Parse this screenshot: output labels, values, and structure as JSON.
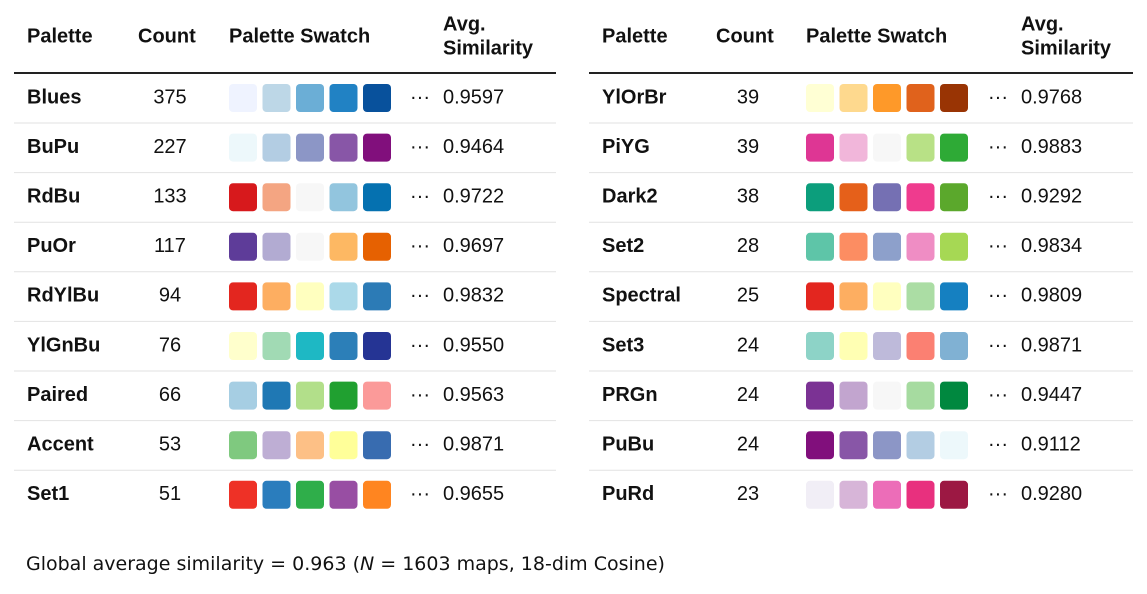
{
  "ellipsis": "···",
  "tables": [
    {
      "header": [
        "Palette",
        "Count",
        "Palette Swatch",
        [
          "Avg.",
          "Similarity"
        ]
      ],
      "rows": [
        {
          "name": "Blues",
          "count": "375",
          "swatch": [
            "#eff3ff",
            "#bdd7e7",
            "#6baed6",
            "#2182c4",
            "#08519c"
          ],
          "similarity": "0.9597"
        },
        {
          "name": "BuPu",
          "count": "227",
          "swatch": [
            "#edf8fb",
            "#b3cde3",
            "#8c96c6",
            "#8856a7",
            "#810f7c"
          ],
          "similarity": "0.9464"
        },
        {
          "name": "RdBu",
          "count": "133",
          "swatch": [
            "#d7191c",
            "#f4a582",
            "#f7f7f7",
            "#92c5de",
            "#0571b0"
          ],
          "similarity": "0.9722"
        },
        {
          "name": "PuOr",
          "count": "117",
          "swatch": [
            "#5e3c99",
            "#b2abd2",
            "#f7f7f7",
            "#fdb863",
            "#e66101"
          ],
          "similarity": "0.9697"
        },
        {
          "name": "RdYlBu",
          "count": "94",
          "swatch": [
            "#e3261f",
            "#fdae61",
            "#ffffbf",
            "#abd9e9",
            "#2c7bb6"
          ],
          "similarity": "0.9832"
        },
        {
          "name": "YlGnBu",
          "count": "76",
          "swatch": [
            "#ffffcc",
            "#a1dab4",
            "#1eb8c4",
            "#2c7fb8",
            "#253494"
          ],
          "similarity": "0.9550"
        },
        {
          "name": "Paired",
          "count": "66",
          "swatch": [
            "#a6cee3",
            "#1f78b4",
            "#b2df8a",
            "#20a030",
            "#fb9a99"
          ],
          "similarity": "0.9563"
        },
        {
          "name": "Accent",
          "count": "53",
          "swatch": [
            "#7fc97f",
            "#beaed4",
            "#fdc086",
            "#ffff99",
            "#386cb0"
          ],
          "similarity": "0.9871"
        },
        {
          "name": "Set1",
          "count": "51",
          "swatch": [
            "#ee3126",
            "#2a7dbd",
            "#2fae4a",
            "#984ea3",
            "#ff8520"
          ],
          "similarity": "0.9655"
        }
      ]
    },
    {
      "header": [
        "Palette",
        "Count",
        "Palette Swatch",
        [
          "Avg.",
          "Similarity"
        ]
      ],
      "rows": [
        {
          "name": "YlOrBr",
          "count": "39",
          "swatch": [
            "#ffffd4",
            "#fed98e",
            "#fe9929",
            "#e0621c",
            "#993404"
          ],
          "similarity": "0.9768"
        },
        {
          "name": "PiYG",
          "count": "39",
          "swatch": [
            "#de3694",
            "#f1b6da",
            "#f7f7f7",
            "#b8e186",
            "#2eaa36"
          ],
          "similarity": "0.9883"
        },
        {
          "name": "Dark2",
          "count": "38",
          "swatch": [
            "#0c9e7c",
            "#e5601a",
            "#7570b3",
            "#ef3b8e",
            "#5ba82c"
          ],
          "similarity": "0.9292"
        },
        {
          "name": "Set2",
          "count": "28",
          "swatch": [
            "#5ec5a8",
            "#fc8d62",
            "#8da0cb",
            "#ef8dc4",
            "#a6d854"
          ],
          "similarity": "0.9834"
        },
        {
          "name": "Spectral",
          "count": "25",
          "swatch": [
            "#e3261f",
            "#fdae61",
            "#ffffbf",
            "#abdda4",
            "#1580c1"
          ],
          "similarity": "0.9809"
        },
        {
          "name": "Set3",
          "count": "24",
          "swatch": [
            "#8dd3c7",
            "#ffffb3",
            "#bebada",
            "#fb8072",
            "#80b1d3"
          ],
          "similarity": "0.9871"
        },
        {
          "name": "PRGn",
          "count": "24",
          "swatch": [
            "#7b3294",
            "#c2a5cf",
            "#f7f7f7",
            "#a6dba0",
            "#00883f"
          ],
          "similarity": "0.9447"
        },
        {
          "name": "PuBu",
          "count": "24",
          "swatch": [
            "#810f7c",
            "#8856a7",
            "#8c96c6",
            "#b3cde3",
            "#edf8fb"
          ],
          "similarity": "0.9112"
        },
        {
          "name": "PuRd",
          "count": "23",
          "swatch": [
            "#f1eef6",
            "#d7b5d8",
            "#ec6db8",
            "#e8307e",
            "#9c1843"
          ],
          "similarity": "0.9280"
        }
      ]
    }
  ],
  "footer": [
    "Global average similarity = 0.963 (",
    "N",
    " = 1603 maps, 18-dim Cosine)"
  ]
}
